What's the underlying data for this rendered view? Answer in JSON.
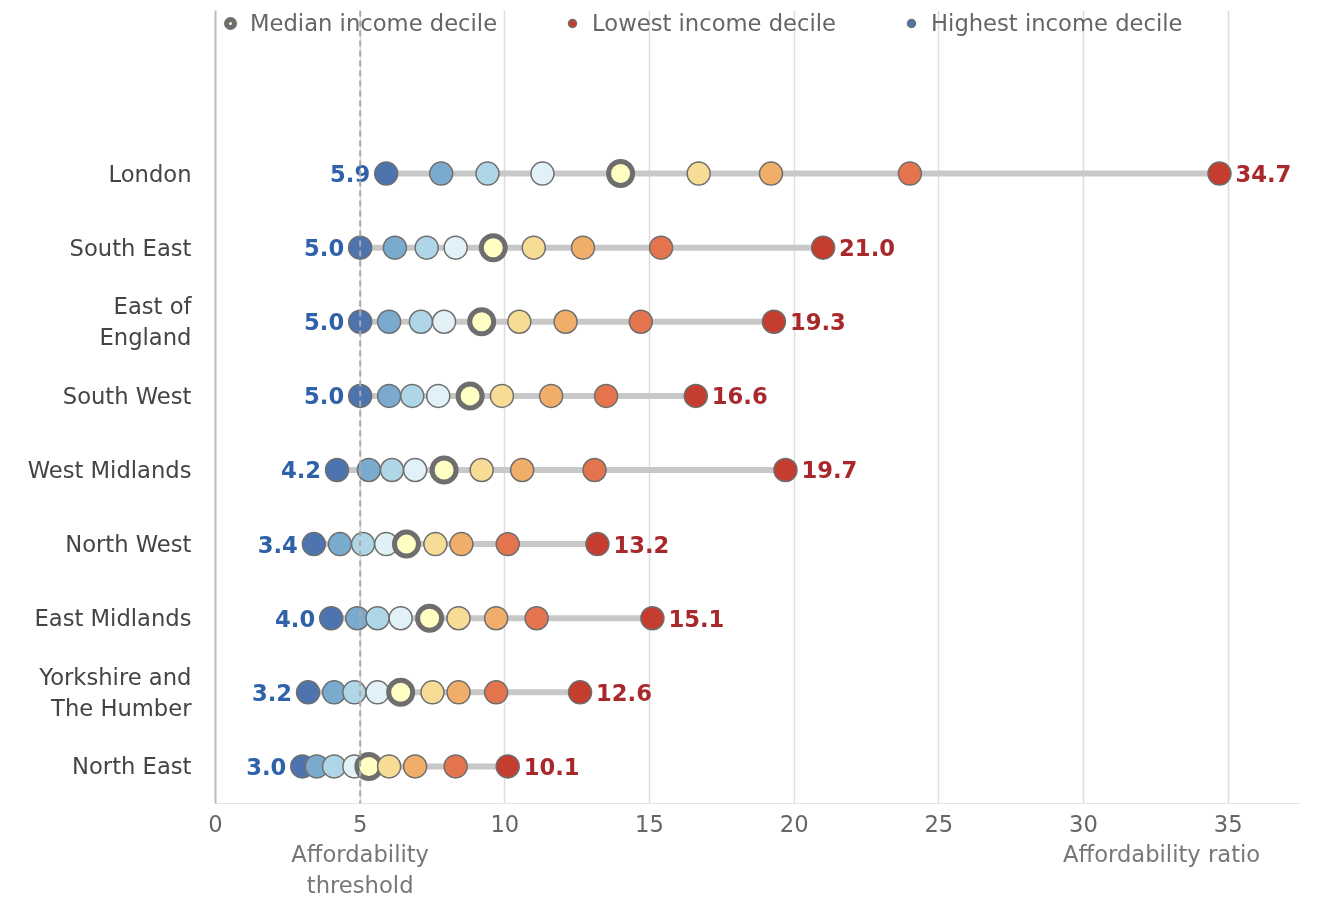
{
  "chart_data": {
    "type": "scatter",
    "orientation": "horizontal",
    "xlabel": "Affordability ratio",
    "categories": [
      "London",
      "South East",
      "East of\nEngland",
      "South West",
      "West Midlands",
      "North West",
      "East Midlands",
      "Yorkshire and\nThe Humber",
      "North East"
    ],
    "xlim": [
      0,
      37.5
    ],
    "xticks": [
      0,
      5,
      10,
      15,
      20,
      25,
      30,
      35
    ],
    "grid": "x",
    "legend": "top",
    "marker": "circle",
    "ref_lines": [
      {
        "axis": "x",
        "value": 5,
        "label": "Affordability\nthreshold",
        "color": "#aaaaaa",
        "line_style": "dashed"
      }
    ],
    "series": [
      {
        "name": "Highest income decile",
        "color": "#4e74b0",
        "values": [
          5.9,
          5.0,
          5.0,
          5.0,
          4.2,
          3.4,
          4.0,
          3.2,
          3.0
        ],
        "value_labels": [
          "5.9",
          "5.0",
          "5.0",
          "5.0",
          "4.2",
          "3.4",
          "4.0",
          "3.2",
          "3.0"
        ]
      },
      {
        "color": "#7aaace",
        "values": [
          7.8,
          6.2,
          6.0,
          6.0,
          5.3,
          4.3,
          4.9,
          4.1,
          3.5
        ]
      },
      {
        "color": "#afd6e6",
        "values": [
          9.4,
          7.3,
          7.1,
          6.8,
          6.1,
          5.1,
          5.6,
          4.8,
          4.1
        ]
      },
      {
        "color": "#e2f1f7",
        "values": [
          11.3,
          8.3,
          7.9,
          7.7,
          6.9,
          5.9,
          6.4,
          5.6,
          4.8
        ]
      },
      {
        "name": "Median income decile",
        "color": "#ffffc4",
        "values": [
          14.0,
          9.6,
          9.2,
          8.8,
          7.9,
          6.6,
          7.4,
          6.4,
          5.3
        ]
      },
      {
        "color": "#f7dc96",
        "values": [
          16.7,
          11.0,
          10.5,
          9.9,
          9.2,
          7.6,
          8.4,
          7.5,
          6.0
        ]
      },
      {
        "color": "#f0ae6a",
        "values": [
          19.2,
          12.7,
          12.1,
          11.6,
          10.6,
          8.5,
          9.7,
          8.4,
          6.9
        ]
      },
      {
        "color": "#e3744d",
        "values": [
          24.0,
          15.4,
          14.7,
          13.5,
          13.1,
          10.1,
          11.1,
          9.7,
          8.3
        ]
      },
      {
        "name": "Lowest income decile",
        "color": "#c43d2f",
        "values": [
          34.7,
          21.0,
          19.3,
          16.6,
          19.7,
          13.2,
          15.1,
          12.6,
          10.1
        ],
        "value_labels": [
          "34.7",
          "21.0",
          "19.3",
          "16.6",
          "19.7",
          "13.2",
          "15.1",
          "12.6",
          "10.1"
        ]
      }
    ]
  }
}
